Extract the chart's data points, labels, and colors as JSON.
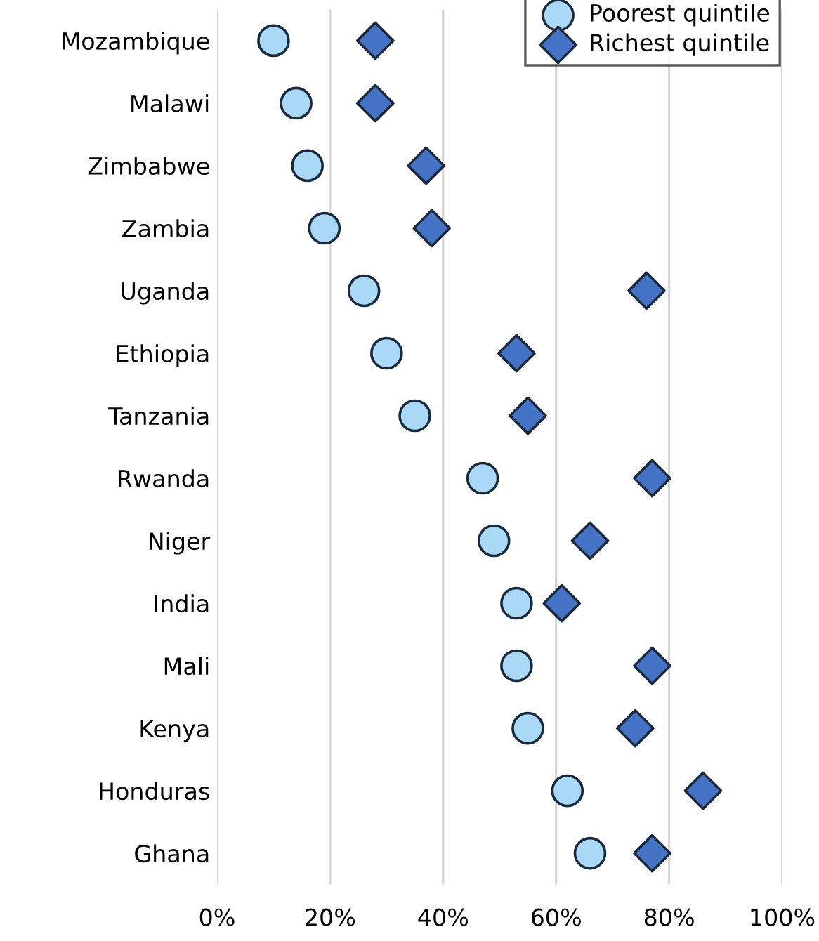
{
  "chart_data": {
    "type": "scatter",
    "orientation": "horizontal",
    "categories": [
      "Mozambique",
      "Malawi",
      "Zimbabwe",
      "Zambia",
      "Uganda",
      "Ethiopia",
      "Tanzania",
      "Rwanda",
      "Niger",
      "India",
      "Mali",
      "Kenya",
      "Honduras",
      "Ghana"
    ],
    "series": [
      {
        "name": "Poorest quintile",
        "color": "#a9d9f7",
        "marker": "circle",
        "values": [
          10,
          14,
          16,
          19,
          26,
          30,
          35,
          47,
          49,
          53,
          53,
          55,
          62,
          66
        ]
      },
      {
        "name": "Richest quintile",
        "color": "#4472c4",
        "marker": "diamond",
        "values": [
          28,
          28,
          37,
          38,
          76,
          53,
          55,
          77,
          66,
          61,
          77,
          74,
          86,
          77
        ]
      }
    ],
    "xlim": [
      0,
      100
    ],
    "xticks": [
      {
        "value": 0,
        "label": "0%"
      },
      {
        "value": 20,
        "label": "20%"
      },
      {
        "value": 40,
        "label": "40%"
      },
      {
        "value": 60,
        "label": "60%"
      },
      {
        "value": 80,
        "label": "80%"
      },
      {
        "value": 100,
        "label": "100%"
      }
    ],
    "grid": "x",
    "legend": "top right"
  }
}
